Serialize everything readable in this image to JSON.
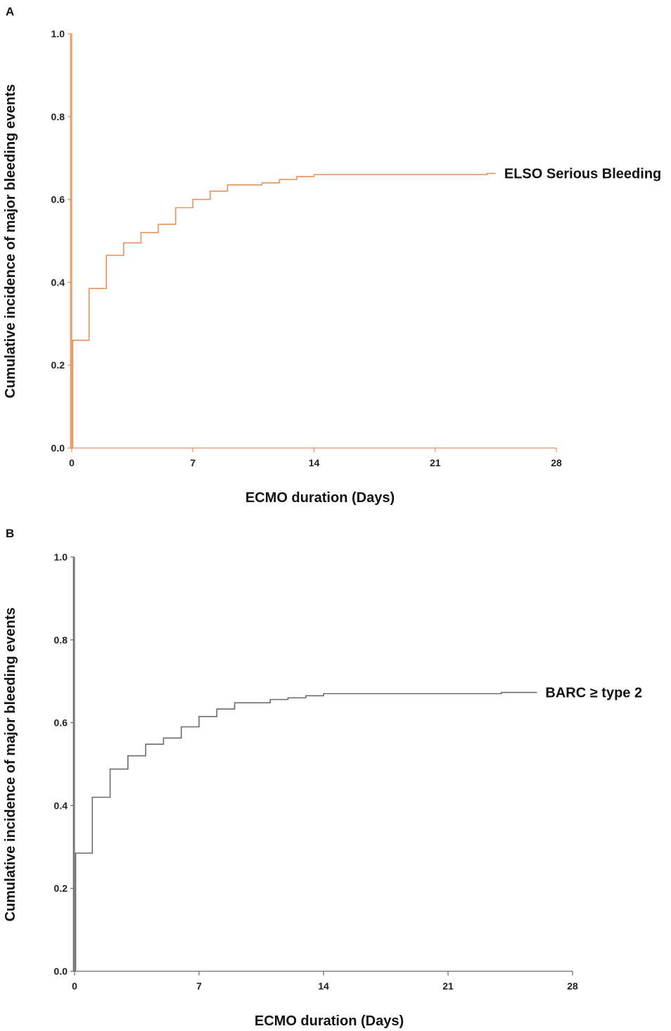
{
  "chart_data": [
    {
      "type": "line",
      "panel": "A",
      "xlabel": "ECMO duration (Days)",
      "ylabel": "Cumulative incidence of major bleeding events",
      "xlim": [
        0,
        28
      ],
      "ylim": [
        0,
        1.0
      ],
      "xticks": [
        0,
        7,
        14,
        21,
        28
      ],
      "yticks": [
        "0.0",
        "0.2",
        "0.4",
        "0.6",
        "0.8",
        "1.0"
      ],
      "grid": false,
      "step": true,
      "color": "#e8925a",
      "series": [
        {
          "name": "ELSO Serious Bleeding",
          "x": [
            0,
            1,
            2,
            3,
            4,
            5,
            6,
            7,
            8,
            9,
            11,
            12,
            13,
            14,
            24,
            24.5
          ],
          "y": [
            0.26,
            0.385,
            0.465,
            0.495,
            0.52,
            0.54,
            0.58,
            0.6,
            0.62,
            0.635,
            0.64,
            0.648,
            0.655,
            0.66,
            0.663,
            0.663
          ]
        }
      ]
    },
    {
      "type": "line",
      "panel": "B",
      "xlabel": "ECMO duration (Days)",
      "ylabel": "Cumulative incidence of major bleeding events",
      "xlim": [
        0,
        28
      ],
      "ylim": [
        0,
        1.0
      ],
      "xticks": [
        0,
        7,
        14,
        21,
        28
      ],
      "yticks": [
        "0.0",
        "0.2",
        "0.4",
        "0.6",
        "0.8",
        "1.0"
      ],
      "grid": false,
      "step": true,
      "color": "#6b6b6b",
      "series": [
        {
          "name": "BARC ≥ type 2",
          "x": [
            0,
            1,
            2,
            3,
            4,
            5,
            6,
            7,
            8,
            9,
            11,
            12,
            13,
            14,
            24,
            26
          ],
          "y": [
            0.285,
            0.42,
            0.488,
            0.52,
            0.548,
            0.563,
            0.59,
            0.615,
            0.633,
            0.648,
            0.656,
            0.66,
            0.665,
            0.67,
            0.673,
            0.673
          ]
        }
      ]
    }
  ]
}
